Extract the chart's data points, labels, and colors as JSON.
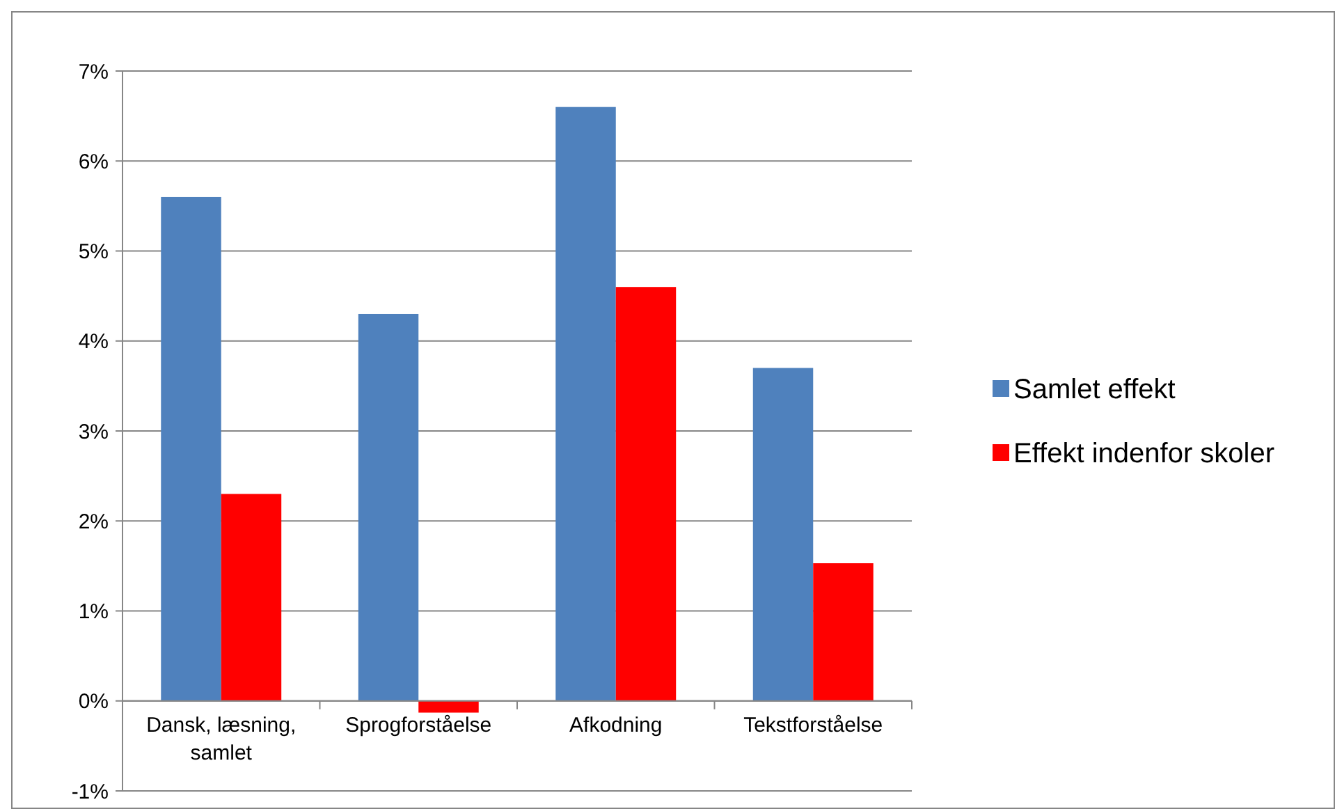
{
  "chart_data": {
    "type": "bar",
    "categories": [
      "Dansk, læsning, samlet",
      "Sprogforståelse",
      "Afkodning",
      "Tekstforståelse"
    ],
    "series": [
      {
        "name": "Samlet effekt",
        "color": "#4f81bd",
        "values": [
          5.6,
          4.3,
          6.6,
          3.7
        ]
      },
      {
        "name": "Effekt indenfor skoler",
        "color": "#ff0000",
        "values": [
          2.3,
          -0.13,
          4.6,
          1.53
        ]
      }
    ],
    "ylim": [
      -1,
      7
    ],
    "yticks": [
      {
        "value": -1,
        "label": "-1%"
      },
      {
        "value": 0,
        "label": "0%"
      },
      {
        "value": 1,
        "label": "1%"
      },
      {
        "value": 2,
        "label": "2%"
      },
      {
        "value": 3,
        "label": "3%"
      },
      {
        "value": 4,
        "label": "4%"
      },
      {
        "value": 5,
        "label": "5%"
      },
      {
        "value": 6,
        "label": "6%"
      },
      {
        "value": 7,
        "label": "7%"
      }
    ],
    "grid": "y",
    "legend": "right"
  }
}
